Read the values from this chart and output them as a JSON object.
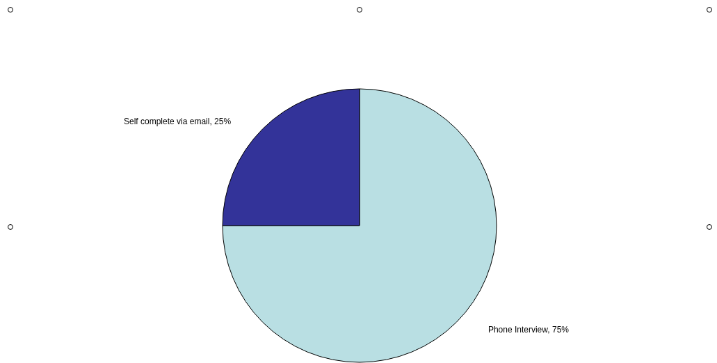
{
  "chart_data": {
    "type": "pie",
    "categories": [
      "Phone Interview",
      "Self complete via email"
    ],
    "values": [
      75,
      25
    ],
    "colors": [
      "#b9dfe3",
      "#333399"
    ],
    "value_labels": [
      "75%",
      "25%"
    ],
    "legend": false
  }
}
